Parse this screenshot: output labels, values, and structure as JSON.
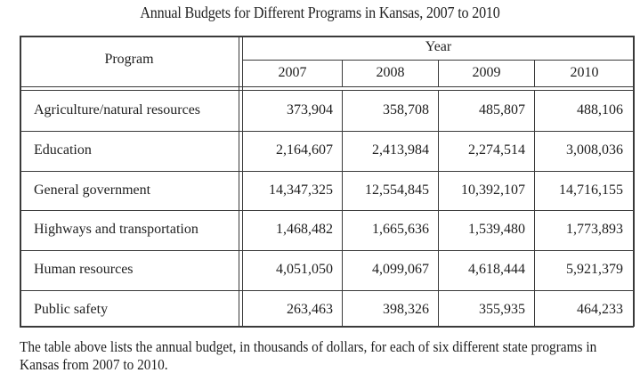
{
  "title": "Annual Budgets for Different Programs in Kansas, 2007 to 2010",
  "table": {
    "program_header": "Program",
    "year_header": "Year",
    "years": [
      "2007",
      "2008",
      "2009",
      "2010"
    ],
    "rows": [
      {
        "program": "Agriculture/natural resources",
        "values": [
          "373,904",
          "358,708",
          "485,807",
          "488,106"
        ]
      },
      {
        "program": "Education",
        "values": [
          "2,164,607",
          "2,413,984",
          "2,274,514",
          "3,008,036"
        ]
      },
      {
        "program": "General government",
        "values": [
          "14,347,325",
          "12,554,845",
          "10,392,107",
          "14,716,155"
        ]
      },
      {
        "program": "Highways and transportation",
        "values": [
          "1,468,482",
          "1,665,636",
          "1,539,480",
          "1,773,893"
        ]
      },
      {
        "program": "Human resources",
        "values": [
          "4,051,050",
          "4,099,067",
          "4,618,444",
          "5,921,379"
        ]
      },
      {
        "program": "Public safety",
        "values": [
          "263,463",
          "398,326",
          "355,935",
          "464,233"
        ]
      }
    ]
  },
  "caption": "The table above lists the annual budget, in thousands of dollars, for each of six different state programs in Kansas from 2007 to 2010.",
  "chart_data": {
    "type": "table",
    "title": "Annual Budgets for Different Programs in Kansas, 2007 to 2010",
    "columns": [
      "Program",
      "2007",
      "2008",
      "2009",
      "2010"
    ],
    "categories": [
      "Agriculture/natural resources",
      "Education",
      "General government",
      "Highways and transportation",
      "Human resources",
      "Public safety"
    ],
    "series": [
      {
        "name": "2007",
        "values": [
          373904,
          2164607,
          14347325,
          1468482,
          4051050,
          263463
        ]
      },
      {
        "name": "2008",
        "values": [
          358708,
          2413984,
          12554845,
          1665636,
          4099067,
          398326
        ]
      },
      {
        "name": "2009",
        "values": [
          485807,
          2274514,
          10392107,
          1539480,
          4618444,
          355935
        ]
      },
      {
        "name": "2010",
        "values": [
          488106,
          3008036,
          14716155,
          1773893,
          5921379,
          464233
        ]
      }
    ],
    "units": "thousands of dollars"
  }
}
